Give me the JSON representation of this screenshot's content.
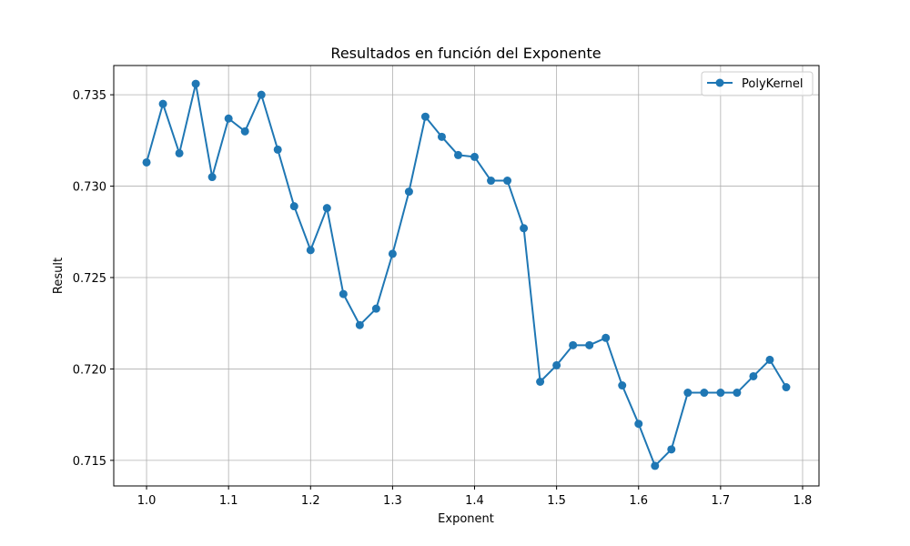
{
  "chart_data": {
    "type": "line",
    "title": "Resultados en función del Exponente",
    "xlabel": "Exponent",
    "ylabel": "Result",
    "xlim": [
      0.96,
      1.82
    ],
    "ylim": [
      0.7136,
      0.7366
    ],
    "xticks": [
      1.0,
      1.1,
      1.2,
      1.3,
      1.4,
      1.5,
      1.6,
      1.7,
      1.8
    ],
    "xtick_labels": [
      "1.0",
      "1.1",
      "1.2",
      "1.3",
      "1.4",
      "1.5",
      "1.6",
      "1.7",
      "1.8"
    ],
    "yticks": [
      0.715,
      0.72,
      0.725,
      0.73,
      0.735
    ],
    "ytick_labels": [
      "0.715",
      "0.720",
      "0.725",
      "0.730",
      "0.735"
    ],
    "grid": true,
    "legend_position": "top-right",
    "series": [
      {
        "name": "PolyKernel",
        "color": "#1f77b4",
        "marker": "circle",
        "x": [
          1.0,
          1.02,
          1.04,
          1.06,
          1.08,
          1.1,
          1.12,
          1.14,
          1.16,
          1.18,
          1.2,
          1.22,
          1.24,
          1.26,
          1.28,
          1.3,
          1.32,
          1.34,
          1.36,
          1.38,
          1.4,
          1.42,
          1.44,
          1.46,
          1.48,
          1.5,
          1.52,
          1.54,
          1.56,
          1.58,
          1.6,
          1.62,
          1.64,
          1.66,
          1.68,
          1.7,
          1.72,
          1.74,
          1.76,
          1.78
        ],
        "y": [
          0.7313,
          0.7345,
          0.7318,
          0.7356,
          0.7305,
          0.7337,
          0.733,
          0.735,
          0.732,
          0.7289,
          0.7265,
          0.7288,
          0.7241,
          0.7224,
          0.7233,
          0.7263,
          0.7297,
          0.7338,
          0.7327,
          0.7317,
          0.7316,
          0.7303,
          0.7303,
          0.7277,
          0.7193,
          0.7202,
          0.7213,
          0.7213,
          0.7217,
          0.7191,
          0.717,
          0.7147,
          0.7156,
          0.7187,
          0.7187,
          0.7187,
          0.7187,
          0.7196,
          0.7205,
          0.719
        ]
      }
    ]
  }
}
